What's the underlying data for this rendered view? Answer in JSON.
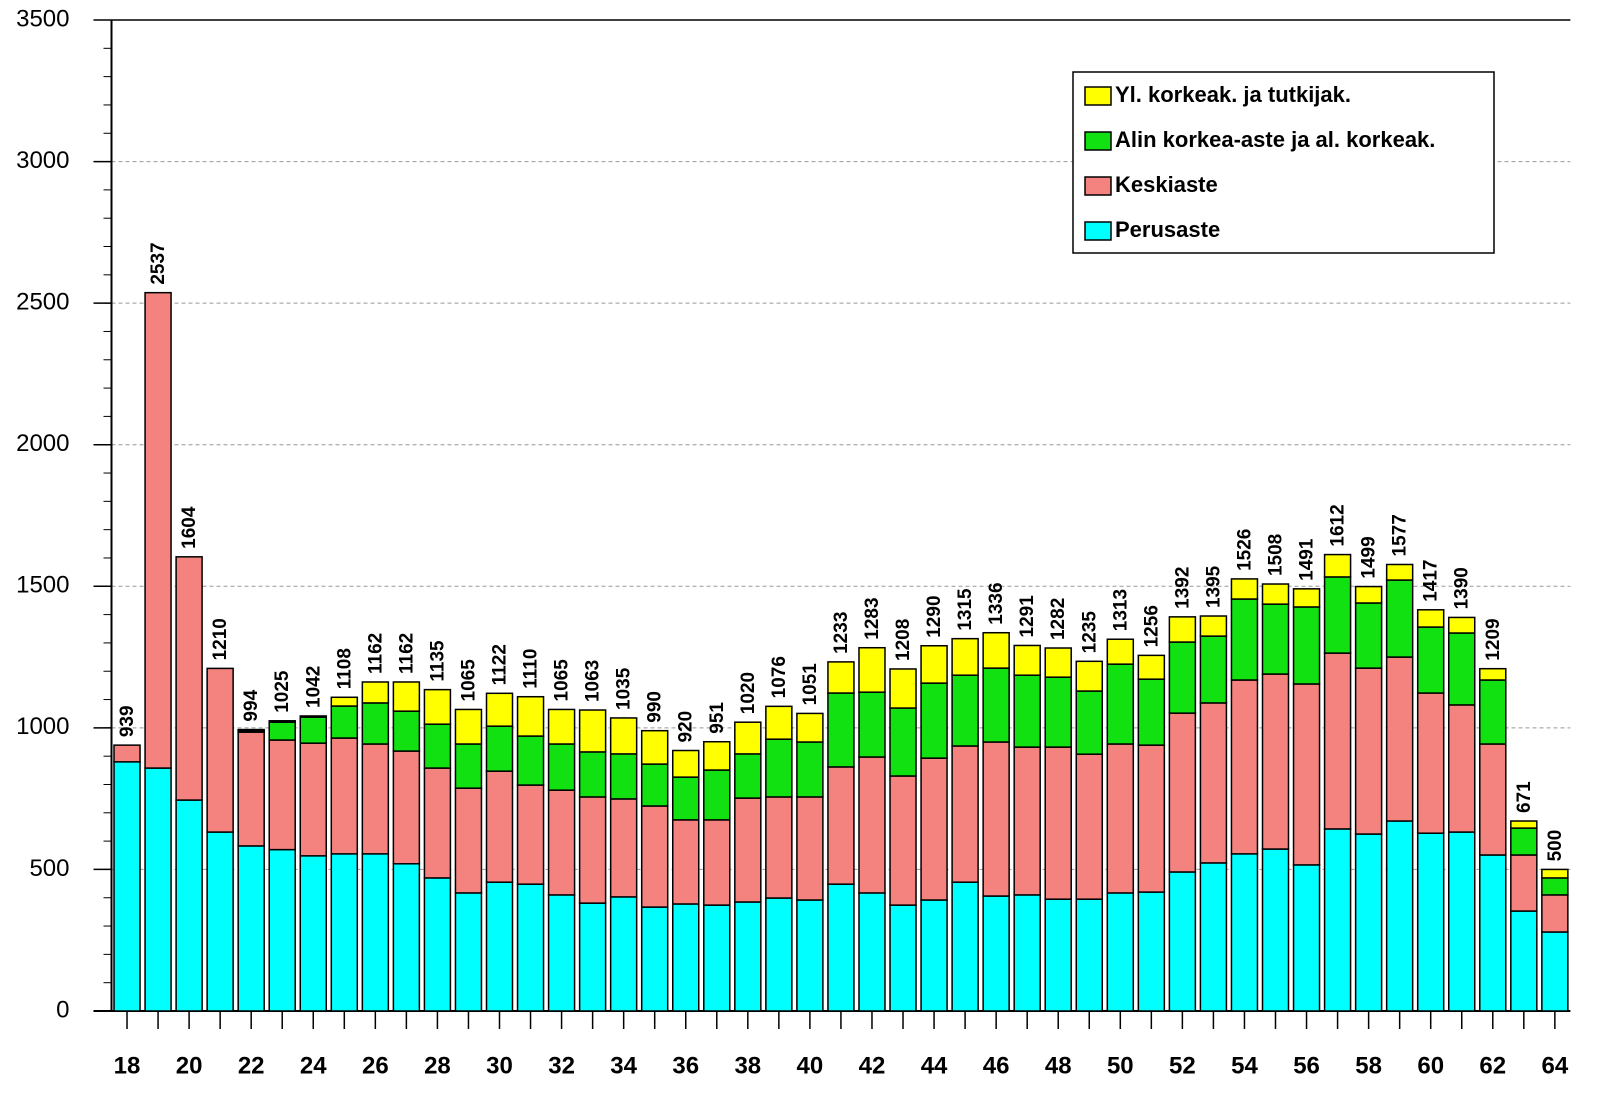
{
  "chart_data": {
    "type": "stacked-bar",
    "categories": [
      "18",
      null,
      "20",
      null,
      "22",
      null,
      "24",
      null,
      "26",
      null,
      "28",
      null,
      "30",
      null,
      "32",
      null,
      "34",
      null,
      "36",
      null,
      "38",
      null,
      "40",
      null,
      "42",
      null,
      "44",
      null,
      "46",
      null,
      "48",
      null,
      "50",
      null,
      "52",
      null,
      "54",
      null,
      "56",
      null,
      "58",
      null,
      "60",
      null,
      "62",
      null,
      "64"
    ],
    "series": [
      {
        "name": "Perusaste",
        "color": "#00ffff",
        "values": [
          880,
          858,
          745,
          632,
          583,
          570,
          548,
          555,
          555,
          520,
          470,
          417,
          455,
          448,
          410,
          381,
          403,
          367,
          378,
          374,
          385,
          399,
          392,
          448,
          417,
          374,
          392,
          455,
          406,
          410,
          395,
          395,
          417,
          420,
          491,
          523,
          555,
          572,
          516,
          643,
          625,
          671,
          628,
          632,
          551,
          353,
          279
        ]
      },
      {
        "name": "Keskiaste",
        "color": "#f4837f",
        "values": [
          59,
          1679,
          859,
          578,
          402,
          387,
          398,
          409,
          388,
          398,
          388,
          370,
          392,
          350,
          370,
          375,
          346,
          357,
          297,
          301,
          367,
          357,
          364,
          414,
          480,
          456,
          501,
          481,
          544,
          522,
          537,
          512,
          526,
          519,
          561,
          565,
          614,
          618,
          639,
          621,
          586,
          579,
          495,
          449,
          392,
          198,
          131
        ]
      },
      {
        "name": "Alin korkea-aste ja al. korkeak.",
        "color": "#11e011",
        "values": [
          0,
          0,
          0,
          0,
          5,
          63,
          92,
          113,
          145,
          141,
          155,
          156,
          159,
          173,
          163,
          159,
          159,
          148,
          151,
          176,
          156,
          204,
          194,
          261,
          229,
          240,
          265,
          250,
          261,
          254,
          247,
          223,
          282,
          233,
          251,
          236,
          286,
          247,
          272,
          269,
          230,
          272,
          233,
          254,
          226,
          95,
          60
        ]
      },
      {
        "name": "Yl. korkeak. ja tutkijak.",
        "color": "#ffff00",
        "values": [
          0,
          0,
          0,
          0,
          4,
          5,
          4,
          31,
          74,
          103,
          122,
          122,
          116,
          139,
          122,
          148,
          127,
          118,
          94,
          100,
          112,
          116,
          101,
          110,
          157,
          138,
          132,
          129,
          125,
          105,
          103,
          105,
          88,
          84,
          89,
          71,
          71,
          71,
          64,
          79,
          58,
          55,
          61,
          55,
          40,
          25,
          30
        ]
      }
    ],
    "total_labels": [
      939,
      2537,
      1604,
      1210,
      994,
      1025,
      1042,
      1108,
      1162,
      1162,
      1135,
      1065,
      1122,
      1110,
      1065,
      1063,
      1035,
      990,
      920,
      951,
      1020,
      1076,
      1051,
      1233,
      1283,
      1208,
      1290,
      1315,
      1336,
      1291,
      1282,
      1235,
      1313,
      1256,
      1392,
      1395,
      1526,
      1508,
      1491,
      1612,
      1499,
      1577,
      1417,
      1390,
      1209,
      671,
      500
    ],
    "ylim": [
      0,
      3500
    ],
    "yticks": [
      0,
      500,
      1000,
      1500,
      2000,
      2500,
      3000,
      3500
    ],
    "grid": true,
    "legend": "top-right"
  }
}
